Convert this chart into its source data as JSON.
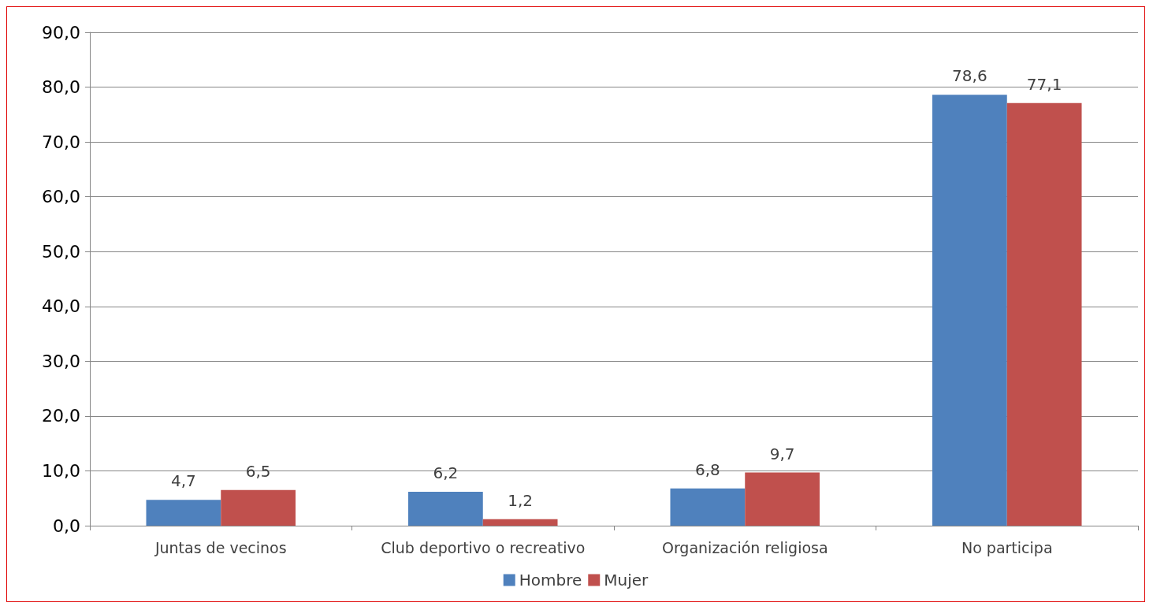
{
  "chart_data": {
    "type": "bar",
    "categories": [
      "Juntas de vecinos",
      "Club deportivo o recreativo",
      "Organización religiosa",
      "No participa"
    ],
    "series": [
      {
        "name": "Hombre",
        "color": "#4f81bd",
        "values": [
          4.7,
          6.2,
          6.8,
          78.6
        ],
        "value_labels": [
          "4,7",
          "6,2",
          "6,8",
          "78,6"
        ]
      },
      {
        "name": "Mujer",
        "color": "#c0504d",
        "values": [
          6.5,
          1.2,
          9.7,
          77.1
        ],
        "value_labels": [
          "6,5",
          "1,2",
          "9,7",
          "77,1"
        ]
      }
    ],
    "ylim": [
      0,
      90
    ],
    "yticks": [
      {
        "value": 0,
        "label": "0,0"
      },
      {
        "value": 10,
        "label": "10,0"
      },
      {
        "value": 20,
        "label": "20,0"
      },
      {
        "value": 30,
        "label": "30,0"
      },
      {
        "value": 40,
        "label": "40,0"
      },
      {
        "value": 50,
        "label": "50,0"
      },
      {
        "value": 60,
        "label": "60,0"
      },
      {
        "value": 70,
        "label": "70,0"
      },
      {
        "value": 80,
        "label": "80,0"
      },
      {
        "value": 90,
        "label": "90,0"
      }
    ],
    "grid": "y",
    "legend": "bottom"
  }
}
